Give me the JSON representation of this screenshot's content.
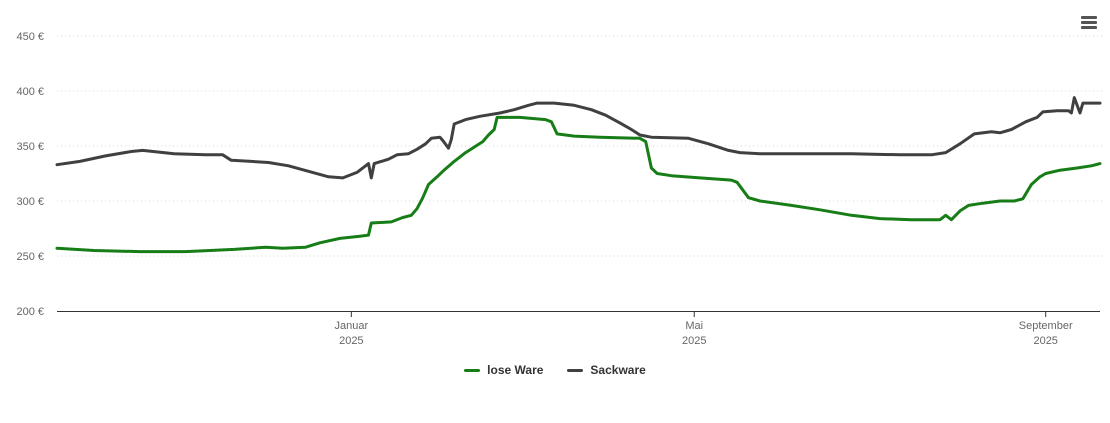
{
  "colors": {
    "lose_ware": "#177d17",
    "sackware": "#404040",
    "axis_line": "#333333",
    "grid_line": "#d4d4d4",
    "axis_text": "#666666",
    "legend_text": "#333333",
    "menu_icon": "#555555",
    "background": "#ffffff"
  },
  "controls": {
    "menu_button": "context-menu"
  },
  "chart_data": {
    "type": "line",
    "title": "",
    "xlabel": "",
    "ylabel": "",
    "y_unit": "€",
    "grid": "horizontal-dotted",
    "legend_position": "bottom-center",
    "ylim": [
      200,
      450
    ],
    "y_ticks": [
      200,
      250,
      300,
      350,
      400,
      450
    ],
    "x_range": [
      "2024-09-20",
      "2025-09-20"
    ],
    "x_ticks": [
      {
        "date": "2025-01-01",
        "label": "Januar",
        "sub": "2025"
      },
      {
        "date": "2025-05-01",
        "label": "Mai",
        "sub": "2025"
      },
      {
        "date": "2025-09-01",
        "label": "September",
        "sub": "2025"
      }
    ],
    "series": [
      {
        "name": "lose Ware",
        "color": "#177d17",
        "points": [
          [
            "2024-09-20",
            257
          ],
          [
            "2024-10-03",
            255
          ],
          [
            "2024-10-19",
            254
          ],
          [
            "2024-11-04",
            254
          ],
          [
            "2024-11-21",
            256
          ],
          [
            "2024-12-02",
            258
          ],
          [
            "2024-12-08",
            257
          ],
          [
            "2024-12-16",
            258
          ],
          [
            "2024-12-21",
            262
          ],
          [
            "2024-12-28",
            266
          ],
          [
            "2025-01-04",
            268
          ],
          [
            "2025-01-07",
            269
          ],
          [
            "2025-01-08",
            280
          ],
          [
            "2025-01-15",
            281
          ],
          [
            "2025-01-19",
            285
          ],
          [
            "2025-01-22",
            287
          ],
          [
            "2025-01-24",
            293
          ],
          [
            "2025-01-26",
            303
          ],
          [
            "2025-01-28",
            315
          ],
          [
            "2025-01-31",
            322
          ],
          [
            "2025-02-02",
            327
          ],
          [
            "2025-02-06",
            336
          ],
          [
            "2025-02-10",
            344
          ],
          [
            "2025-02-13",
            349
          ],
          [
            "2025-02-16",
            354
          ],
          [
            "2025-02-18",
            360
          ],
          [
            "2025-02-20",
            365
          ],
          [
            "2025-02-21",
            376
          ],
          [
            "2025-03-01",
            376
          ],
          [
            "2025-03-10",
            374
          ],
          [
            "2025-03-12",
            372
          ],
          [
            "2025-03-14",
            361
          ],
          [
            "2025-03-20",
            359
          ],
          [
            "2025-03-29",
            358
          ],
          [
            "2025-04-12",
            357
          ],
          [
            "2025-04-14",
            354
          ],
          [
            "2025-04-16",
            330
          ],
          [
            "2025-04-18",
            325
          ],
          [
            "2025-04-23",
            323
          ],
          [
            "2025-05-03",
            321
          ],
          [
            "2025-05-14",
            319
          ],
          [
            "2025-05-16",
            317
          ],
          [
            "2025-05-20",
            303
          ],
          [
            "2025-05-24",
            300
          ],
          [
            "2025-06-04",
            296
          ],
          [
            "2025-06-14",
            292
          ],
          [
            "2025-06-25",
            287
          ],
          [
            "2025-07-05",
            284
          ],
          [
            "2025-07-16",
            283
          ],
          [
            "2025-07-26",
            283
          ],
          [
            "2025-07-28",
            287
          ],
          [
            "2025-07-30",
            283
          ],
          [
            "2025-08-02",
            291
          ],
          [
            "2025-08-05",
            296
          ],
          [
            "2025-08-10",
            298
          ],
          [
            "2025-08-16",
            300
          ],
          [
            "2025-08-21",
            300
          ],
          [
            "2025-08-24",
            302
          ],
          [
            "2025-08-27",
            315
          ],
          [
            "2025-08-30",
            322
          ],
          [
            "2025-09-01",
            325
          ],
          [
            "2025-09-06",
            328
          ],
          [
            "2025-09-12",
            330
          ],
          [
            "2025-09-17",
            332
          ],
          [
            "2025-09-20",
            334
          ]
        ]
      },
      {
        "name": "Sackware",
        "color": "#404040",
        "points": [
          [
            "2024-09-20",
            333
          ],
          [
            "2024-09-28",
            336
          ],
          [
            "2024-10-07",
            341
          ],
          [
            "2024-10-16",
            345
          ],
          [
            "2024-10-20",
            346
          ],
          [
            "2024-10-31",
            343
          ],
          [
            "2024-11-11",
            342
          ],
          [
            "2024-11-17",
            342
          ],
          [
            "2024-11-20",
            337
          ],
          [
            "2024-11-27",
            336
          ],
          [
            "2024-12-03",
            335
          ],
          [
            "2024-12-10",
            332
          ],
          [
            "2024-12-17",
            327
          ],
          [
            "2024-12-24",
            322
          ],
          [
            "2024-12-29",
            321
          ],
          [
            "2025-01-03",
            326
          ],
          [
            "2025-01-06",
            332
          ],
          [
            "2025-01-07",
            334
          ],
          [
            "2025-01-08",
            321
          ],
          [
            "2025-01-09",
            334
          ],
          [
            "2025-01-14",
            338
          ],
          [
            "2025-01-17",
            342
          ],
          [
            "2025-01-21",
            343
          ],
          [
            "2025-01-24",
            347
          ],
          [
            "2025-01-27",
            352
          ],
          [
            "2025-01-29",
            357
          ],
          [
            "2025-02-01",
            358
          ],
          [
            "2025-02-02",
            355
          ],
          [
            "2025-02-04",
            348
          ],
          [
            "2025-02-05",
            356
          ],
          [
            "2025-02-06",
            370
          ],
          [
            "2025-02-10",
            374
          ],
          [
            "2025-02-15",
            377
          ],
          [
            "2025-02-22",
            380
          ],
          [
            "2025-02-27",
            383
          ],
          [
            "2025-03-04",
            387
          ],
          [
            "2025-03-07",
            389
          ],
          [
            "2025-03-13",
            389
          ],
          [
            "2025-03-20",
            387
          ],
          [
            "2025-03-26",
            383
          ],
          [
            "2025-03-31",
            378
          ],
          [
            "2025-04-05",
            371
          ],
          [
            "2025-04-09",
            365
          ],
          [
            "2025-04-12",
            360
          ],
          [
            "2025-04-16",
            358
          ],
          [
            "2025-04-29",
            357
          ],
          [
            "2025-05-06",
            352
          ],
          [
            "2025-05-13",
            346
          ],
          [
            "2025-05-17",
            344
          ],
          [
            "2025-05-24",
            343
          ],
          [
            "2025-06-07",
            343
          ],
          [
            "2025-06-25",
            343
          ],
          [
            "2025-07-12",
            342
          ],
          [
            "2025-07-23",
            342
          ],
          [
            "2025-07-28",
            344
          ],
          [
            "2025-08-02",
            352
          ],
          [
            "2025-08-07",
            361
          ],
          [
            "2025-08-13",
            363
          ],
          [
            "2025-08-16",
            362
          ],
          [
            "2025-08-20",
            365
          ],
          [
            "2025-08-25",
            372
          ],
          [
            "2025-08-29",
            376
          ],
          [
            "2025-08-31",
            381
          ],
          [
            "2025-09-05",
            382
          ],
          [
            "2025-09-09",
            382
          ],
          [
            "2025-09-10",
            380
          ],
          [
            "2025-09-11",
            394
          ],
          [
            "2025-09-13",
            380
          ],
          [
            "2025-09-14",
            389
          ],
          [
            "2025-09-20",
            389
          ]
        ]
      }
    ]
  }
}
